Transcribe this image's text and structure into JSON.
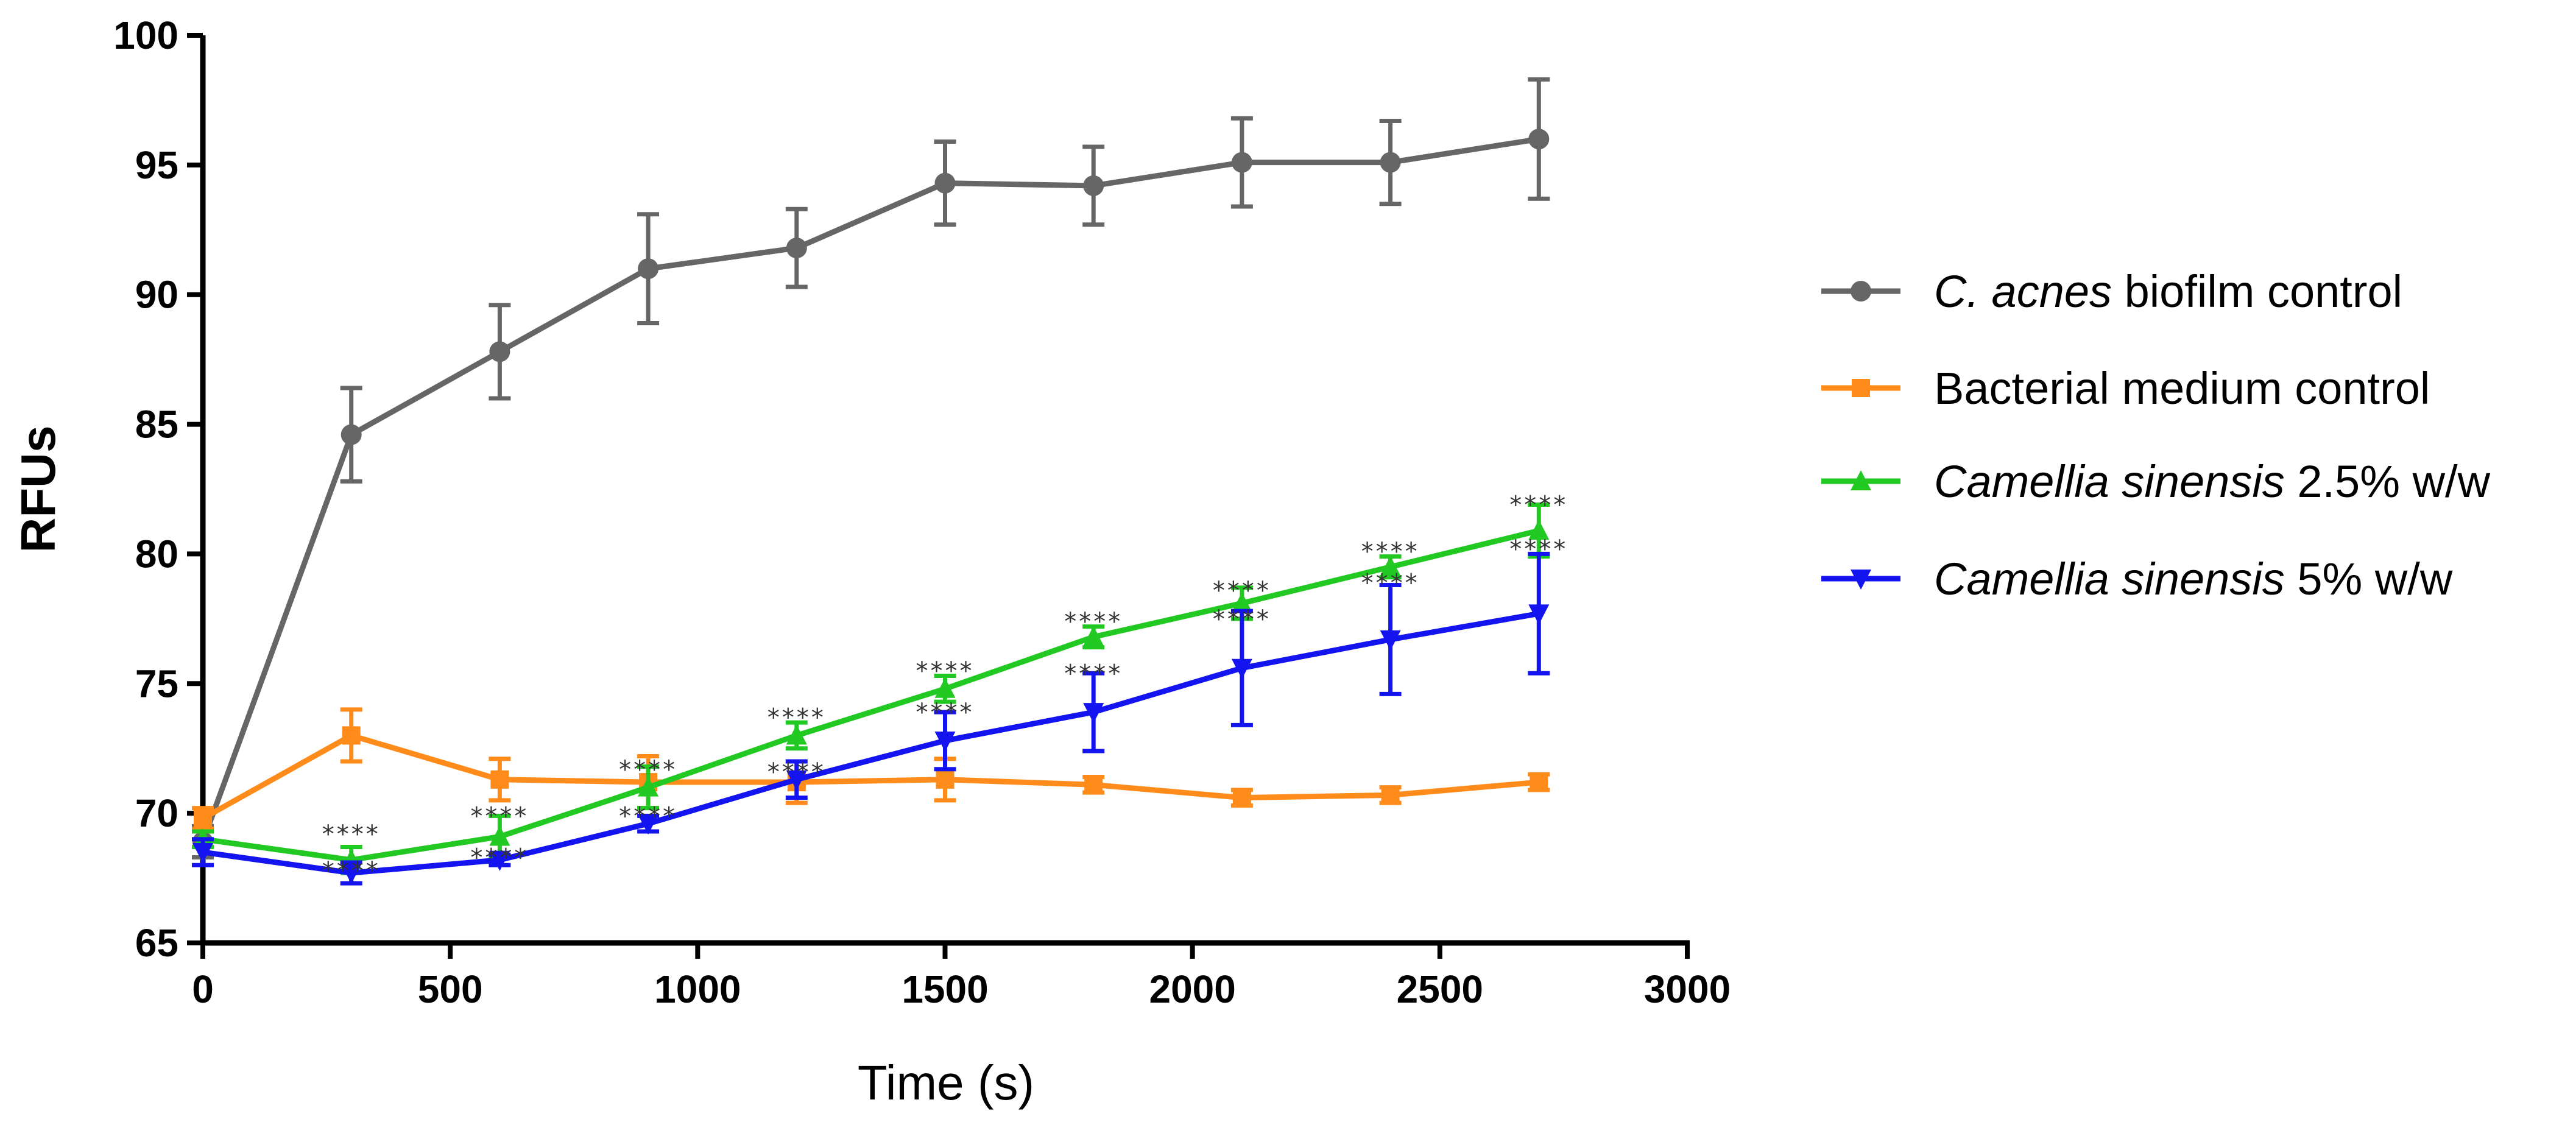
{
  "chart_data": {
    "type": "line",
    "title": "",
    "xlabel": "Time (s)",
    "ylabel": "RFUs",
    "xlim": [
      0,
      3000
    ],
    "ylim": [
      65,
      100
    ],
    "xticks": [
      0,
      500,
      1000,
      1500,
      2000,
      2500,
      3000
    ],
    "yticks": [
      65,
      70,
      75,
      80,
      85,
      90,
      95,
      100
    ],
    "grid": false,
    "legend_position": "right",
    "x": [
      0,
      300,
      600,
      900,
      1200,
      1500,
      1800,
      2100,
      2400,
      2700
    ],
    "series": [
      {
        "name": "C. acnes biofilm control",
        "name_italic": "C. acnes",
        "name_rest": " biofilm control",
        "color": "#666666",
        "marker": "circle",
        "values": [
          68.9,
          84.6,
          87.8,
          91.0,
          91.8,
          94.3,
          94.2,
          95.1,
          95.1,
          96.0
        ],
        "errors": [
          0.6,
          1.8,
          1.8,
          2.1,
          1.5,
          1.6,
          1.5,
          1.7,
          1.6,
          2.3
        ]
      },
      {
        "name": "Bacterial medium control",
        "name_italic": "",
        "name_rest": "Bacterial medium control",
        "color": "#FF8C1A",
        "marker": "square",
        "values": [
          69.8,
          73.0,
          71.3,
          71.2,
          71.2,
          71.3,
          71.1,
          70.6,
          70.7,
          71.2
        ],
        "errors": [
          0.4,
          1.0,
          0.8,
          1.0,
          0.8,
          0.8,
          0.3,
          0.3,
          0.3,
          0.3
        ]
      },
      {
        "name": "Camellia sinensis 2.5% w/w",
        "name_italic": "Camellia sinensis",
        "name_rest": " 2.5% w/w",
        "color": "#22C922",
        "marker": "triangle-up",
        "values": [
          69.0,
          68.2,
          69.1,
          71.0,
          73.0,
          74.8,
          76.8,
          78.1,
          79.5,
          80.9
        ],
        "errors": [
          0.3,
          0.5,
          0.8,
          0.8,
          0.5,
          0.5,
          0.4,
          0.6,
          0.4,
          1.0
        ]
      },
      {
        "name": "Camellia sinensis 5% w/w",
        "name_italic": "Camellia sinensis",
        "name_rest": " 5% w/w",
        "color": "#1414F0",
        "marker": "triangle-down",
        "values": [
          68.5,
          67.7,
          68.2,
          69.6,
          71.3,
          72.8,
          73.9,
          75.6,
          76.7,
          77.7
        ],
        "errors": [
          0.5,
          0.4,
          0.2,
          0.3,
          0.7,
          1.1,
          1.5,
          2.2,
          2.1,
          2.3
        ]
      }
    ],
    "annotations": [
      {
        "x": 300,
        "y": 69.2,
        "text": "****"
      },
      {
        "x": 300,
        "y": 67.8,
        "text": "****"
      },
      {
        "x": 600,
        "y": 69.9,
        "text": "****"
      },
      {
        "x": 600,
        "y": 68.3,
        "text": "****"
      },
      {
        "x": 900,
        "y": 71.7,
        "text": "****"
      },
      {
        "x": 900,
        "y": 69.9,
        "text": "****"
      },
      {
        "x": 1200,
        "y": 73.7,
        "text": "****"
      },
      {
        "x": 1200,
        "y": 71.6,
        "text": "****"
      },
      {
        "x": 1500,
        "y": 75.5,
        "text": "****"
      },
      {
        "x": 1500,
        "y": 73.9,
        "text": "****"
      },
      {
        "x": 1800,
        "y": 77.4,
        "text": "****"
      },
      {
        "x": 1800,
        "y": 75.4,
        "text": "****"
      },
      {
        "x": 2100,
        "y": 78.6,
        "text": "****"
      },
      {
        "x": 2100,
        "y": 77.5,
        "text": "****"
      },
      {
        "x": 2400,
        "y": 80.1,
        "text": "****"
      },
      {
        "x": 2400,
        "y": 78.9,
        "text": "****"
      },
      {
        "x": 2700,
        "y": 81.9,
        "text": "****"
      },
      {
        "x": 2700,
        "y": 80.2,
        "text": "****"
      }
    ]
  }
}
